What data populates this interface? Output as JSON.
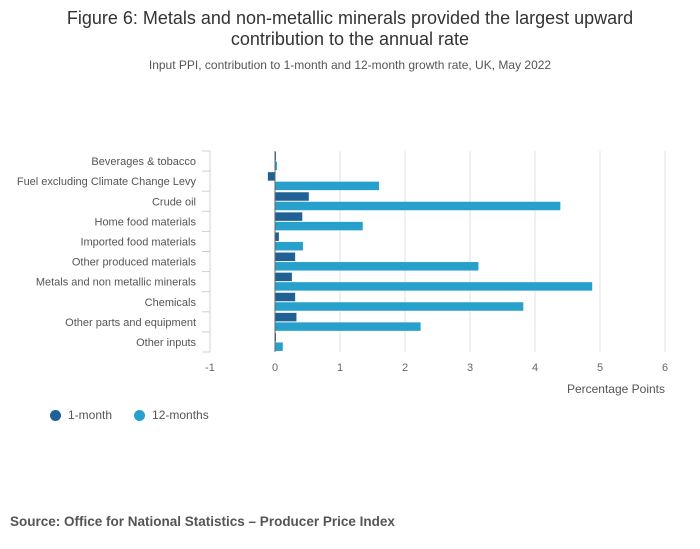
{
  "title": "Figure 6: Metals and non-metallic minerals provided the largest upward contribution to the annual rate",
  "subtitle": "Input PPI, contribution to 1-month and 12-month growth rate, UK, May 2022",
  "source": "Source: Office for National Statistics – Producer Price Index",
  "colors": {
    "one_month": "#206095",
    "twelve_months": "#27a0cc",
    "grid": "#e2e2e3",
    "axis": "#666666"
  },
  "chart_data": {
    "type": "bar",
    "orientation": "horizontal",
    "xlabel": "Percentage Points",
    "xlim": [
      -1,
      6
    ],
    "xticks": [
      -1,
      0,
      1,
      2,
      3,
      4,
      5,
      6
    ],
    "categories": [
      "Beverages & tobacco",
      "Fuel excluding Climate Change Levy",
      "Crude oil",
      "Home food materials",
      "Imported food materials",
      "Other produced materials",
      "Metals and non metallic minerals",
      "Chemicals",
      "Other parts and equipment",
      "Other inputs"
    ],
    "series": [
      {
        "name": "1-month",
        "values": [
          0.01,
          -0.11,
          0.52,
          0.42,
          0.06,
          0.31,
          0.26,
          0.31,
          0.33,
          0.01
        ]
      },
      {
        "name": "12-months",
        "values": [
          0.03,
          1.6,
          4.39,
          1.35,
          0.43,
          3.13,
          4.88,
          3.82,
          2.24,
          0.12
        ]
      }
    ],
    "legend_position": "bottom-left"
  }
}
